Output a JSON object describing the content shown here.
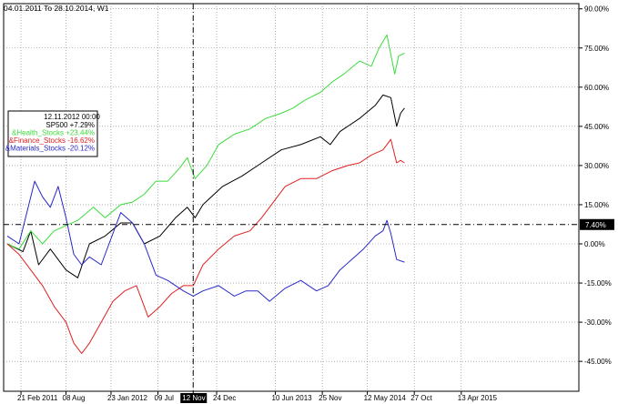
{
  "header": {
    "date_range": "04.01.2011 To 28.10.2014, W1"
  },
  "legend": {
    "date": "12.11.2012 00:00",
    "entries": [
      {
        "name": "SP500",
        "value": "+7.29%",
        "color": "#000000"
      },
      {
        "name": "&Health_Stocks",
        "value": "+23.44%",
        "color": "#3cdc3c"
      },
      {
        "name": "&Finance_Stocks",
        "value": "-16.62%",
        "color": "#e02020"
      },
      {
        "name": "&Materials_Stocks",
        "value": "-20.12%",
        "color": "#2828c8"
      }
    ]
  },
  "crosshair": {
    "x_label": "12 Nov",
    "y_label": "7.40%"
  },
  "colors": {
    "grid": "#7f7f7f",
    "axis": "#000000",
    "crosshair": "#000000",
    "background": "#ffffff"
  },
  "chart_data": {
    "type": "line",
    "title": "",
    "ylabel": "",
    "xlabel": "",
    "ylim": [
      -50,
      92
    ],
    "x_ticks": [
      "21 Feb 2011",
      "08 Aug",
      "23 Jan 2012",
      "09 Jul",
      "12 Nov",
      "24 Dec",
      "10 Jun 2013",
      "25 Nov",
      "12 May 2014",
      "27 Oct",
      "13 Apr 2015"
    ],
    "x_tick_index": [
      7,
      30,
      53,
      77,
      95,
      107,
      137,
      161,
      184,
      208,
      232
    ],
    "y_ticks": [
      90,
      75,
      60,
      45,
      30,
      15,
      0,
      -15,
      -30,
      -45
    ],
    "y_tick_labels": [
      "90.00%",
      "75.00%",
      "60.00%",
      "45.00%",
      "30.00%",
      "15.00%",
      "0.00%",
      "-15.00%",
      "-30.00%",
      "-45.00%"
    ],
    "grid": true,
    "legend_position": "top-left",
    "crosshair_index": 95,
    "crosshair_value": 7.4,
    "series": [
      {
        "name": "SP500",
        "color": "#000000",
        "points": [
          [
            0,
            0
          ],
          [
            8,
            -3
          ],
          [
            12,
            5
          ],
          [
            16,
            -8
          ],
          [
            22,
            -2
          ],
          [
            30,
            -10
          ],
          [
            36,
            -13
          ],
          [
            42,
            0
          ],
          [
            50,
            3
          ],
          [
            58,
            8
          ],
          [
            64,
            8
          ],
          [
            70,
            0
          ],
          [
            78,
            3
          ],
          [
            86,
            10
          ],
          [
            92,
            14
          ],
          [
            96,
            10
          ],
          [
            100,
            15
          ],
          [
            110,
            22
          ],
          [
            120,
            26
          ],
          [
            130,
            31
          ],
          [
            140,
            36
          ],
          [
            150,
            38
          ],
          [
            160,
            41
          ],
          [
            165,
            38
          ],
          [
            170,
            43
          ],
          [
            180,
            48
          ],
          [
            188,
            53
          ],
          [
            192,
            57
          ],
          [
            196,
            56
          ],
          [
            199,
            45
          ],
          [
            201,
            50
          ],
          [
            203,
            52
          ]
        ]
      },
      {
        "name": "&Health_Stocks",
        "color": "#3cdc3c",
        "points": [
          [
            0,
            0
          ],
          [
            6,
            -2
          ],
          [
            12,
            5
          ],
          [
            18,
            0
          ],
          [
            24,
            5
          ],
          [
            30,
            7
          ],
          [
            36,
            9
          ],
          [
            44,
            14
          ],
          [
            50,
            10
          ],
          [
            58,
            15
          ],
          [
            64,
            16
          ],
          [
            70,
            19
          ],
          [
            76,
            24
          ],
          [
            82,
            24
          ],
          [
            88,
            29
          ],
          [
            92,
            33
          ],
          [
            96,
            25
          ],
          [
            102,
            30
          ],
          [
            108,
            38
          ],
          [
            116,
            42
          ],
          [
            124,
            44
          ],
          [
            132,
            48
          ],
          [
            140,
            50
          ],
          [
            146,
            52
          ],
          [
            152,
            55
          ],
          [
            160,
            58
          ],
          [
            166,
            62
          ],
          [
            172,
            65
          ],
          [
            180,
            70
          ],
          [
            186,
            68
          ],
          [
            190,
            75
          ],
          [
            194,
            80
          ],
          [
            198,
            65
          ],
          [
            200,
            72
          ],
          [
            203,
            73
          ]
        ]
      },
      {
        "name": "&Finance_Stocks",
        "color": "#e02020",
        "points": [
          [
            0,
            0
          ],
          [
            6,
            -4
          ],
          [
            12,
            -10
          ],
          [
            18,
            -16
          ],
          [
            24,
            -24
          ],
          [
            30,
            -30
          ],
          [
            34,
            -38
          ],
          [
            38,
            -42
          ],
          [
            42,
            -38
          ],
          [
            48,
            -30
          ],
          [
            54,
            -22
          ],
          [
            60,
            -18
          ],
          [
            66,
            -16
          ],
          [
            72,
            -28
          ],
          [
            78,
            -24
          ],
          [
            84,
            -19
          ],
          [
            90,
            -16
          ],
          [
            95,
            -16
          ],
          [
            100,
            -8
          ],
          [
            108,
            -2
          ],
          [
            116,
            3
          ],
          [
            124,
            5
          ],
          [
            130,
            10
          ],
          [
            136,
            16
          ],
          [
            142,
            22
          ],
          [
            150,
            25
          ],
          [
            158,
            25
          ],
          [
            166,
            28
          ],
          [
            174,
            30
          ],
          [
            180,
            31
          ],
          [
            186,
            34
          ],
          [
            192,
            36
          ],
          [
            196,
            40
          ],
          [
            199,
            31
          ],
          [
            201,
            32
          ],
          [
            203,
            31
          ]
        ]
      },
      {
        "name": "&Materials_Stocks",
        "color": "#2828c8",
        "points": [
          [
            0,
            3
          ],
          [
            6,
            0
          ],
          [
            10,
            12
          ],
          [
            14,
            24
          ],
          [
            18,
            18
          ],
          [
            22,
            14
          ],
          [
            26,
            22
          ],
          [
            30,
            10
          ],
          [
            34,
            -4
          ],
          [
            38,
            -8
          ],
          [
            42,
            -5
          ],
          [
            48,
            -8
          ],
          [
            52,
            0
          ],
          [
            58,
            12
          ],
          [
            64,
            8
          ],
          [
            70,
            0
          ],
          [
            76,
            -12
          ],
          [
            82,
            -14
          ],
          [
            90,
            -18
          ],
          [
            95,
            -20
          ],
          [
            100,
            -18
          ],
          [
            108,
            -16
          ],
          [
            116,
            -20
          ],
          [
            122,
            -18
          ],
          [
            128,
            -18
          ],
          [
            134,
            -22
          ],
          [
            142,
            -17
          ],
          [
            150,
            -14
          ],
          [
            158,
            -18
          ],
          [
            164,
            -16
          ],
          [
            170,
            -10
          ],
          [
            176,
            -6
          ],
          [
            182,
            -2
          ],
          [
            188,
            3
          ],
          [
            192,
            5
          ],
          [
            194,
            9
          ],
          [
            196,
            4
          ],
          [
            199,
            -6
          ],
          [
            203,
            -7
          ]
        ]
      }
    ]
  }
}
